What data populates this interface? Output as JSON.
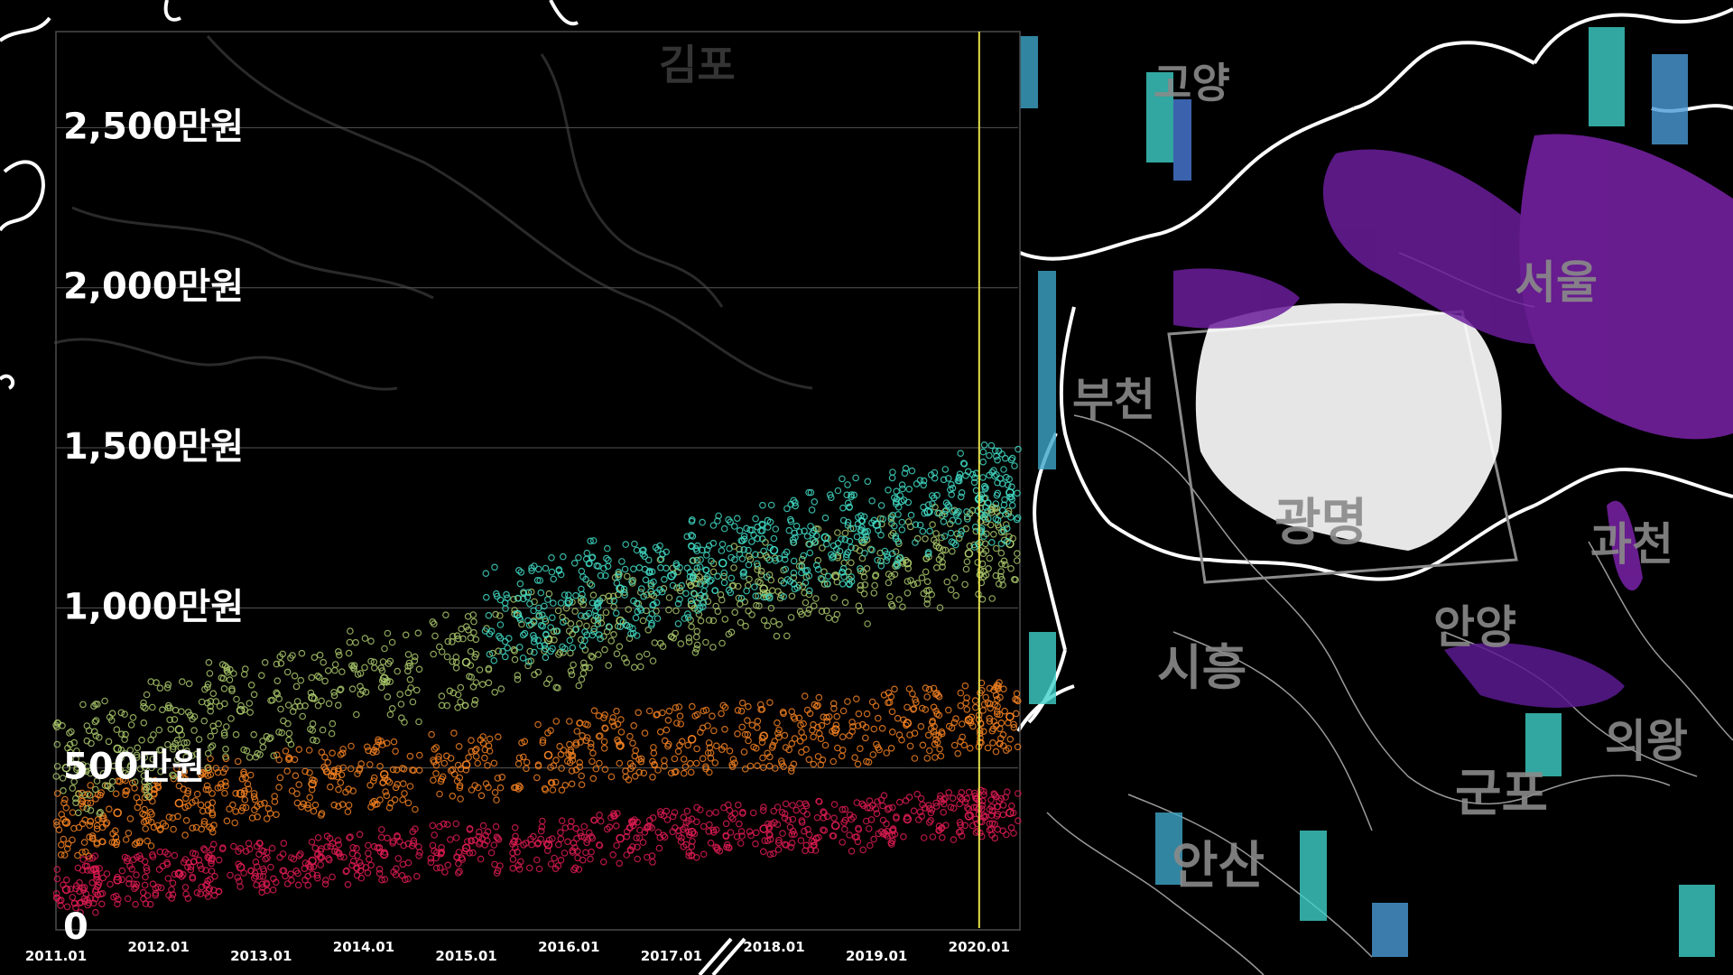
{
  "map": {
    "cities": [
      {
        "id": "gimpo",
        "label": "김포"
      },
      {
        "id": "goyang",
        "label": "고양"
      },
      {
        "id": "seoul",
        "label": "서울"
      },
      {
        "id": "bucheon",
        "label": "부천"
      },
      {
        "id": "gwangmyeong",
        "label": "광명"
      },
      {
        "id": "gwacheon",
        "label": "과천"
      },
      {
        "id": "anyang",
        "label": "안양"
      },
      {
        "id": "siheung",
        "label": "시흥"
      },
      {
        "id": "uiwang",
        "label": "의왕"
      },
      {
        "id": "gunpo",
        "label": "군포"
      },
      {
        "id": "ansan",
        "label": "안산"
      }
    ],
    "colors": {
      "highlight": "#ffffff",
      "spike_high": "#7a1fa2",
      "spike_low": "#3fd0c8",
      "spike_mid": "#4a7bd8"
    }
  },
  "chart_data": {
    "type": "scatter",
    "xlabel": "",
    "ylabel": "",
    "y_unit_label": "만원",
    "ylim": [
      0,
      2800
    ],
    "xlim": [
      "2011.01",
      "2020.06"
    ],
    "y_ticks": [
      {
        "value": 0,
        "label": "0"
      },
      {
        "value": 500,
        "label": "500만원"
      },
      {
        "value": 1000,
        "label": "1,000만원"
      },
      {
        "value": 1500,
        "label": "1,500만원"
      },
      {
        "value": 2000,
        "label": "2,000만원"
      },
      {
        "value": 2500,
        "label": "2,500만원"
      }
    ],
    "x_ticks": [
      {
        "value": 2011.0,
        "label": "2011.01"
      },
      {
        "value": 2012.0,
        "label": "2012.01"
      },
      {
        "value": 2013.0,
        "label": "2013.01"
      },
      {
        "value": 2014.0,
        "label": "2014.01"
      },
      {
        "value": 2015.0,
        "label": "2015.01"
      },
      {
        "value": 2016.0,
        "label": "2016.01"
      },
      {
        "value": 2017.0,
        "label": "2017.01"
      },
      {
        "value": 2018.0,
        "label": "2018.01"
      },
      {
        "value": 2019.0,
        "label": "2019.01"
      },
      {
        "value": 2020.0,
        "label": "2020.01"
      }
    ],
    "marker_line": {
      "x": 2020.0,
      "color": "#e6e04a"
    },
    "grid": true,
    "series": [
      {
        "color": "#d81b50",
        "values": [
          [
            2011.1,
            120
          ],
          [
            2011.6,
            150
          ],
          [
            2012.2,
            170
          ],
          [
            2012.8,
            190
          ],
          [
            2013.5,
            210
          ],
          [
            2014.2,
            230
          ],
          [
            2015.0,
            250
          ],
          [
            2015.8,
            260
          ],
          [
            2016.5,
            280
          ],
          [
            2017.2,
            300
          ],
          [
            2017.9,
            310
          ],
          [
            2018.6,
            320
          ],
          [
            2019.3,
            340
          ],
          [
            2019.9,
            350
          ],
          [
            2020.3,
            360
          ]
        ]
      },
      {
        "color": "#ee7f22",
        "values": [
          [
            2011.1,
            330
          ],
          [
            2011.6,
            360
          ],
          [
            2012.2,
            390
          ],
          [
            2012.8,
            420
          ],
          [
            2013.5,
            450
          ],
          [
            2014.2,
            480
          ],
          [
            2015.0,
            510
          ],
          [
            2015.8,
            540
          ],
          [
            2016.5,
            570
          ],
          [
            2017.2,
            590
          ],
          [
            2017.9,
            600
          ],
          [
            2018.6,
            620
          ],
          [
            2019.3,
            640
          ],
          [
            2019.9,
            650
          ],
          [
            2020.3,
            660
          ]
        ]
      },
      {
        "color": "#a8c66a",
        "values": [
          [
            2011.1,
            500
          ],
          [
            2011.6,
            560
          ],
          [
            2012.2,
            620
          ],
          [
            2012.8,
            680
          ],
          [
            2013.5,
            720
          ],
          [
            2014.2,
            780
          ],
          [
            2015.0,
            830
          ],
          [
            2015.8,
            900
          ],
          [
            2016.5,
            960
          ],
          [
            2017.2,
            1010
          ],
          [
            2017.9,
            1060
          ],
          [
            2018.6,
            1100
          ],
          [
            2019.3,
            1140
          ],
          [
            2019.9,
            1170
          ],
          [
            2020.3,
            1200
          ]
        ]
      },
      {
        "color": "#3fd6c0",
        "values": [
          [
            2015.5,
            980
          ],
          [
            2016.0,
            1020
          ],
          [
            2016.5,
            1060
          ],
          [
            2017.0,
            1100
          ],
          [
            2017.5,
            1140
          ],
          [
            2018.0,
            1180
          ],
          [
            2018.5,
            1220
          ],
          [
            2019.0,
            1260
          ],
          [
            2019.5,
            1300
          ],
          [
            2020.0,
            1340
          ],
          [
            2020.3,
            1360
          ]
        ]
      }
    ]
  }
}
